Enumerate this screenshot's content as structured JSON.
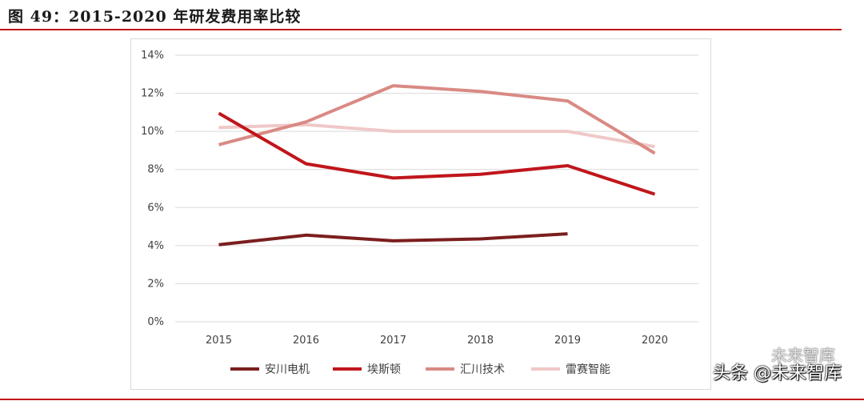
{
  "figure": {
    "title": "图 49：2015-2020 年研发费用率比较"
  },
  "colors": {
    "rule": "#c2161a",
    "grid": "#d9d9d9",
    "axis_text": "#404040"
  },
  "watermark": {
    "primary": "头条 @未来智库",
    "secondary": "未来智库"
  },
  "chart_data": {
    "type": "line",
    "title": "",
    "xlabel": "",
    "ylabel": "",
    "categories": [
      "2015",
      "2016",
      "2017",
      "2018",
      "2019",
      "2020"
    ],
    "ylim": [
      0,
      14
    ],
    "yticks": [
      0,
      2,
      4,
      6,
      8,
      10,
      12,
      14
    ],
    "ytick_labels": [
      "0%",
      "2%",
      "4%",
      "6%",
      "8%",
      "10%",
      "12%",
      "14%"
    ],
    "grid": true,
    "legend_position": "bottom",
    "series": [
      {
        "name": "安川电机",
        "color": "#7b1e1e",
        "values": [
          4.05,
          4.55,
          4.25,
          4.35,
          4.62,
          null
        ]
      },
      {
        "name": "埃斯顿",
        "color": "#c0161c",
        "values": [
          10.95,
          8.3,
          7.55,
          7.75,
          8.2,
          6.7
        ]
      },
      {
        "name": "汇川技术",
        "color": "#d98a84",
        "values": [
          9.3,
          10.5,
          12.4,
          12.1,
          11.6,
          8.85
        ]
      },
      {
        "name": "雷赛智能",
        "color": "#f0c8c8",
        "values": [
          10.2,
          10.35,
          10.0,
          10.0,
          10.0,
          9.2
        ]
      }
    ]
  }
}
